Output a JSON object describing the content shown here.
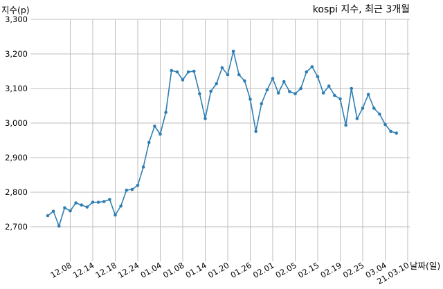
{
  "chart_data": {
    "type": "line",
    "title": "kospi 지수, 최근 3개월",
    "xlabel": "날짜(일)",
    "ylabel": "지수(p)",
    "ylim": [
      2600,
      3300
    ],
    "yticks": [
      "2,700",
      "2,800",
      "2,900",
      "3,000",
      "3,100",
      "3,200",
      "3,300"
    ],
    "ytick_values": [
      2700,
      2800,
      2900,
      3000,
      3100,
      3200,
      3300
    ],
    "xticks": [
      "12.08",
      "12.14",
      "12.18",
      "12.24",
      "01.04",
      "01.08",
      "01.14",
      "01.20",
      "01.26",
      "02.01",
      "02.05",
      "02.15",
      "02.19",
      "02.25",
      "03.04",
      "21.03.10"
    ],
    "xtick_index": [
      4,
      8,
      12,
      16,
      20,
      24,
      28,
      32,
      36,
      40,
      44,
      48,
      52,
      56,
      60,
      64
    ],
    "grid": true,
    "color": "#2e7eb3",
    "series": [
      {
        "values": [
          2732,
          2745,
          2702,
          2755,
          2746,
          2769,
          2763,
          2757,
          2771,
          2771,
          2773,
          2779,
          2734,
          2760,
          2806,
          2808,
          2820,
          2873,
          2944,
          2991,
          2968,
          3031,
          3152,
          3148,
          3125,
          3148,
          3150,
          3085,
          3013,
          3092,
          3114,
          3160,
          3140,
          3208,
          3140,
          3122,
          3069,
          2976,
          3056,
          3096,
          3129,
          3087,
          3120,
          3091,
          3085,
          3100,
          3148,
          3163,
          3134,
          3087,
          3107,
          3080,
          3070,
          2994,
          3100,
          3013,
          3043,
          3083,
          3043,
          3026,
          2996,
          2976,
          2971
        ]
      }
    ]
  }
}
